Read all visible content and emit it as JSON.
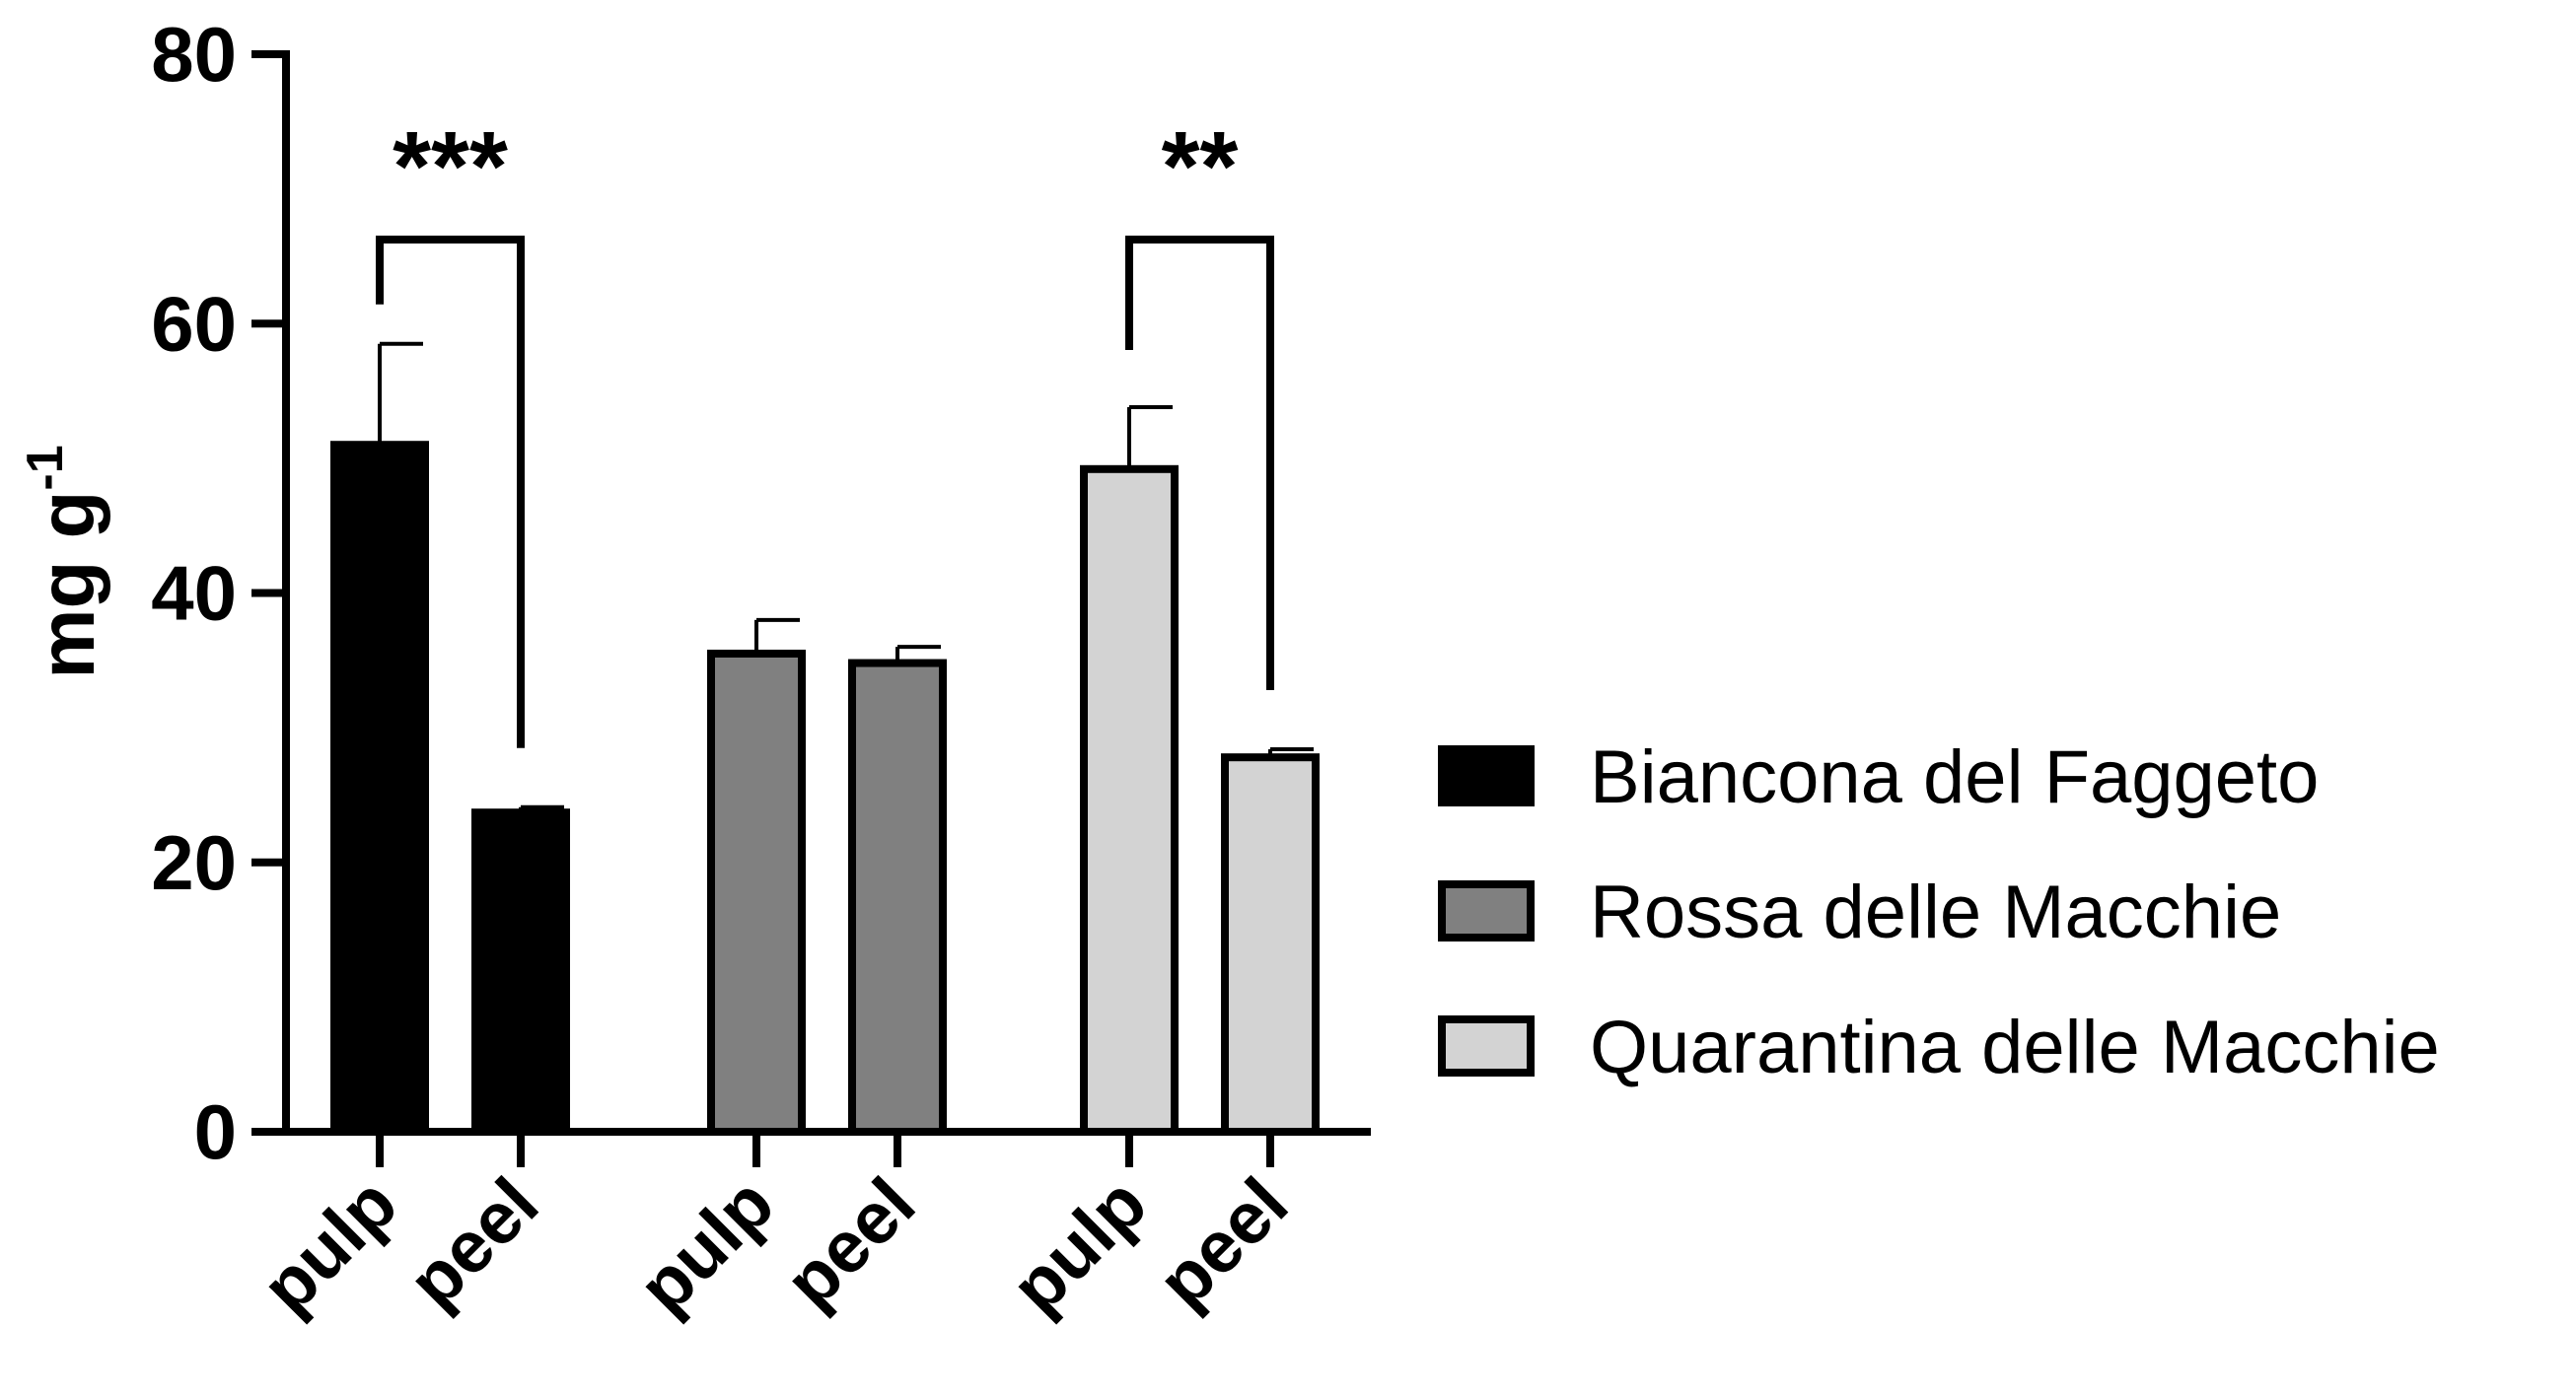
{
  "chart_data": {
    "type": "bar",
    "title": "",
    "ylabel": "mg g",
    "ylabel_superscript": "-1",
    "ylim": [
      0,
      80
    ],
    "yticks": [
      0,
      20,
      40,
      60,
      80
    ],
    "categories": [
      "pulp",
      "peel"
    ],
    "series": [
      {
        "name": "Biancona del Faggeto",
        "color": "#000000",
        "values": [
          51,
          23.7
        ],
        "errors": [
          7.5,
          0.4
        ]
      },
      {
        "name": "Rossa delle Macchie",
        "color": "#808080",
        "values": [
          35.5,
          34.8
        ],
        "errors": [
          2.5,
          1.2
        ]
      },
      {
        "name": "Quarantina delle Macchie",
        "color": "#d3d3d3",
        "values": [
          49.2,
          27.8
        ],
        "errors": [
          4.6,
          0.6
        ]
      }
    ],
    "significance": [
      {
        "series": 0,
        "label": "***"
      },
      {
        "series": 2,
        "label": "**"
      }
    ],
    "legend_position": "right",
    "grid": false
  }
}
